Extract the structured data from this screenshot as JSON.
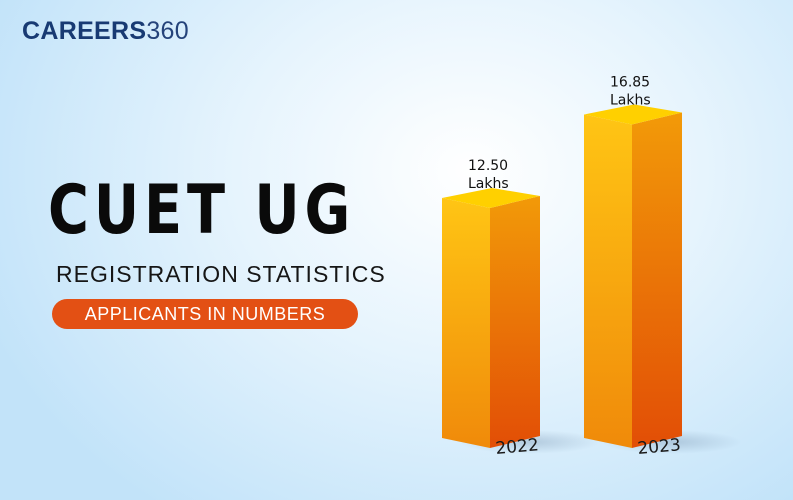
{
  "brand": {
    "word": "CAREERS",
    "number": "360"
  },
  "title": "CUET UG",
  "subtitle": "REGISTRATION STATISTICS",
  "badge": "APPLICANTS IN NUMBERS",
  "chart_data": {
    "type": "bar",
    "categories": [
      "2022",
      "2023"
    ],
    "values": [
      12.5,
      16.85
    ],
    "value_labels": [
      [
        "12.50",
        "Lakhs"
      ],
      [
        "16.85",
        "Lakhs"
      ]
    ],
    "unit": "Lakhs",
    "ylim": [
      0,
      20
    ],
    "grid": false,
    "style": "3d-bars",
    "colors": {
      "front": "#f6a90c",
      "side": "#e65a06",
      "top": "#ffd000"
    }
  }
}
